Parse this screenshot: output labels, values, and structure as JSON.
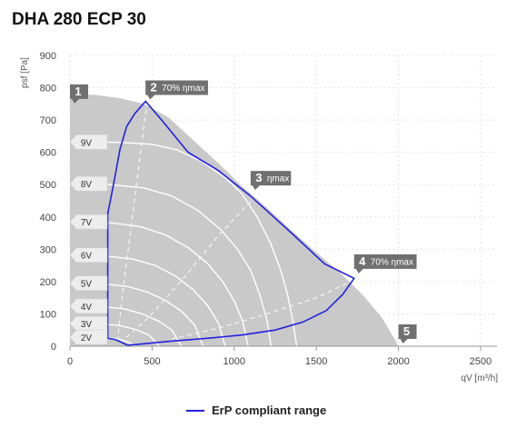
{
  "chart_data": {
    "type": "area",
    "title": "DHA 280 ECP 30",
    "xlabel": "qV [m³/h]",
    "ylabel": "psf [Pa]",
    "xlim": [
      0,
      2600
    ],
    "ylim": [
      0,
      900
    ],
    "x_ticks": [
      "0",
      "500",
      "1000",
      "1500",
      "2000",
      "2500"
    ],
    "y_ticks": [
      "0",
      "100",
      "200",
      "300",
      "400",
      "500",
      "600",
      "700",
      "800",
      "900"
    ],
    "grid": true,
    "legend_position": "bottom",
    "colors": {
      "area": "#c9c9c9",
      "curves": "#ffffff",
      "erp": "#2222dd",
      "marker": "#707070"
    },
    "operating_envelope": {
      "name": "",
      "points": [
        [
          0,
          780
        ],
        [
          150,
          778
        ],
        [
          300,
          768
        ],
        [
          450,
          750
        ],
        [
          600,
          708
        ],
        [
          750,
          638
        ],
        [
          900,
          568
        ],
        [
          1050,
          494
        ],
        [
          1200,
          428
        ],
        [
          1350,
          358
        ],
        [
          1500,
          290
        ],
        [
          1650,
          225
        ],
        [
          1780,
          160
        ],
        [
          1900,
          88
        ],
        [
          1985,
          15
        ],
        [
          2000,
          0
        ]
      ]
    },
    "voltage_curves": [
      {
        "label": "9V",
        "points": [
          [
            0,
            632
          ],
          [
            300,
            631
          ],
          [
            500,
            625
          ],
          [
            650,
            608
          ],
          [
            800,
            573
          ],
          [
            950,
            520
          ],
          [
            1050,
            470
          ],
          [
            1140,
            400
          ],
          [
            1220,
            320
          ],
          [
            1280,
            240
          ],
          [
            1325,
            160
          ],
          [
            1360,
            70
          ],
          [
            1380,
            0
          ]
        ]
      },
      {
        "label": "8V",
        "points": [
          [
            0,
            503
          ],
          [
            250,
            500
          ],
          [
            450,
            490
          ],
          [
            620,
            465
          ],
          [
            780,
            420
          ],
          [
            920,
            360
          ],
          [
            1020,
            300
          ],
          [
            1100,
            235
          ],
          [
            1155,
            160
          ],
          [
            1200,
            80
          ],
          [
            1225,
            0
          ]
        ]
      },
      {
        "label": "7V",
        "points": [
          [
            0,
            385
          ],
          [
            250,
            382
          ],
          [
            430,
            370
          ],
          [
            580,
            345
          ],
          [
            720,
            305
          ],
          [
            840,
            255
          ],
          [
            930,
            200
          ],
          [
            1000,
            140
          ],
          [
            1050,
            80
          ],
          [
            1085,
            0
          ]
        ]
      },
      {
        "label": "6V",
        "points": [
          [
            0,
            282
          ],
          [
            200,
            280
          ],
          [
            380,
            270
          ],
          [
            520,
            250
          ],
          [
            640,
            218
          ],
          [
            750,
            175
          ],
          [
            840,
            125
          ],
          [
            905,
            70
          ],
          [
            945,
            0
          ]
        ]
      },
      {
        "label": "5V",
        "points": [
          [
            0,
            195
          ],
          [
            200,
            193
          ],
          [
            350,
            185
          ],
          [
            470,
            168
          ],
          [
            580,
            142
          ],
          [
            680,
            108
          ],
          [
            760,
            65
          ],
          [
            810,
            0
          ]
        ]
      },
      {
        "label": "4V",
        "points": [
          [
            0,
            124
          ],
          [
            200,
            122
          ],
          [
            330,
            116
          ],
          [
            440,
            100
          ],
          [
            540,
            78
          ],
          [
            620,
            50
          ],
          [
            680,
            0
          ]
        ]
      },
      {
        "label": "3V",
        "points": [
          [
            0,
            70
          ],
          [
            180,
            69
          ],
          [
            300,
            64
          ],
          [
            400,
            52
          ],
          [
            480,
            35
          ],
          [
            545,
            0
          ]
        ]
      },
      {
        "label": "2V",
        "points": [
          [
            0,
            28
          ],
          [
            200,
            27
          ],
          [
            300,
            22
          ],
          [
            360,
            12
          ],
          [
            400,
            0
          ]
        ]
      }
    ],
    "efficiency_lines": [
      {
        "points": [
          [
            470,
            758
          ],
          [
            420,
            560
          ],
          [
            370,
            360
          ],
          [
            320,
            160
          ],
          [
            290,
            20
          ]
        ]
      },
      {
        "points": [
          [
            1100,
            448
          ],
          [
            900,
            340
          ],
          [
            700,
            215
          ],
          [
            480,
            90
          ],
          [
            300,
            8
          ]
        ]
      },
      {
        "points": [
          [
            1730,
            205
          ],
          [
            1500,
            150
          ],
          [
            1200,
            100
          ],
          [
            900,
            55
          ],
          [
            600,
            20
          ]
        ]
      }
    ],
    "erp_compliant_range": {
      "name": "ErP compliant range",
      "points": [
        [
          230,
          410
        ],
        [
          265,
          500
        ],
        [
          305,
          610
        ],
        [
          345,
          680
        ],
        [
          395,
          720
        ],
        [
          460,
          758
        ],
        [
          550,
          705
        ],
        [
          720,
          600
        ],
        [
          900,
          545
        ],
        [
          1100,
          465
        ],
        [
          1350,
          350
        ],
        [
          1550,
          255
        ],
        [
          1730,
          210
        ],
        [
          1660,
          160
        ],
        [
          1560,
          110
        ],
        [
          1420,
          75
        ],
        [
          1250,
          50
        ],
        [
          1050,
          35
        ],
        [
          850,
          25
        ],
        [
          600,
          15
        ],
        [
          400,
          5
        ],
        [
          350,
          3
        ],
        [
          280,
          20
        ],
        [
          230,
          25
        ]
      ]
    },
    "point_labels": [
      {
        "id": "1",
        "text": "",
        "x": 0,
        "y": 788
      },
      {
        "id": "2",
        "text": "70% ηmax",
        "x": 460,
        "y": 800
      },
      {
        "id": "3",
        "text": "ηmax",
        "x": 1100,
        "y": 520
      },
      {
        "id": "4",
        "text": "70% ηmax",
        "x": 1730,
        "y": 262
      },
      {
        "id": "5",
        "text": "",
        "x": 2000,
        "y": 45
      }
    ],
    "legend": [
      "ErP compliant range"
    ]
  }
}
